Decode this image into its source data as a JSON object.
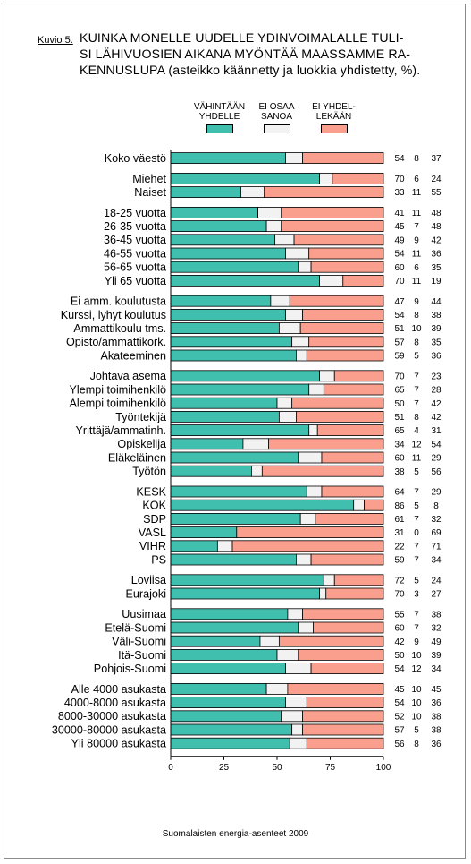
{
  "figure_label": "Kuvio 5.",
  "title": "KUINKA MONELLE UUDELLE YDINVOIMALALLE TULISI LÄHIVUOSIEN AIKANA MYÖNTÄÄ MAASSAMME RAKENNUSLUPA (asteikko käännetty ja luokkia yhdistetty, %).",
  "title_lines": [
    "KUINKA MONELLE UUDELLE YDINVOIMALALLE TULI-",
    "SI LÄHIVUOSIEN AIKANA MYÖNTÄÄ MAASSAMME RA-",
    "KENNUSLUPA (asteikko käännetty ja luokkia yhdistetty, %)."
  ],
  "legend": [
    {
      "line1": "VÄHINTÄÄN",
      "line2": "YHDELLE",
      "color": "#40bfae"
    },
    {
      "line1": "EI OSAA",
      "line2": "SANOA",
      "color": "#f2f2f2"
    },
    {
      "line1": "EI YHDEL-",
      "line2": "LEKÄÄN",
      "color": "#fa9f8e"
    }
  ],
  "source": "Suomalaisten energia-asenteet 2009",
  "chart_data": {
    "type": "bar",
    "orientation": "horizontal",
    "stacked": true,
    "title": "KUINKA MONELLE UUDELLE YDINVOIMALALLE TULISI LÄHIVUOSIEN AIKANA MYÖNTÄÄ MAASSAMME RAKENNUSLUPA (asteikko käännetty ja luokkia yhdistetty, %).",
    "xlim": [
      0,
      100
    ],
    "x_ticks": [
      "0",
      "25",
      "50",
      "75",
      "100"
    ],
    "grid": false,
    "legend_position": "top",
    "series_names": [
      "VÄHINTÄÄN YHDELLE",
      "EI OSAA SANOA",
      "EI YHDELLEKÄÄN"
    ],
    "groups": [
      {
        "rows": [
          {
            "label": "Koko väestö",
            "values": [
              54,
              8,
              37
            ]
          }
        ]
      },
      {
        "rows": [
          {
            "label": "Miehet",
            "values": [
              70,
              6,
              24
            ]
          },
          {
            "label": "Naiset",
            "values": [
              33,
              11,
              55
            ]
          }
        ]
      },
      {
        "rows": [
          {
            "label": "18-25 vuotta",
            "values": [
              41,
              11,
              48
            ]
          },
          {
            "label": "26-35 vuotta",
            "values": [
              45,
              7,
              48
            ]
          },
          {
            "label": "36-45 vuotta",
            "values": [
              49,
              9,
              42
            ]
          },
          {
            "label": "46-55 vuotta",
            "values": [
              54,
              11,
              36
            ]
          },
          {
            "label": "56-65 vuotta",
            "values": [
              60,
              6,
              35
            ]
          },
          {
            "label": "Yli 65 vuotta",
            "values": [
              70,
              11,
              19
            ]
          }
        ]
      },
      {
        "rows": [
          {
            "label": "Ei amm. koulutusta",
            "values": [
              47,
              9,
              44
            ]
          },
          {
            "label": "Kurssi, lyhyt koulutus",
            "values": [
              54,
              8,
              38
            ]
          },
          {
            "label": "Ammattikoulu tms.",
            "values": [
              51,
              10,
              39
            ]
          },
          {
            "label": "Opisto/ammattikork.",
            "values": [
              57,
              8,
              35
            ]
          },
          {
            "label": "Akateeminen",
            "values": [
              59,
              5,
              36
            ]
          }
        ]
      },
      {
        "rows": [
          {
            "label": "Johtava asema",
            "values": [
              70,
              7,
              23
            ]
          },
          {
            "label": "Ylempi toimihenkilö",
            "values": [
              65,
              7,
              28
            ]
          },
          {
            "label": "Alempi toimihenkilö",
            "values": [
              50,
              7,
              42
            ]
          },
          {
            "label": "Työntekijä",
            "values": [
              51,
              8,
              42
            ]
          },
          {
            "label": "Yrittäjä/ammatinh.",
            "values": [
              65,
              4,
              31
            ]
          },
          {
            "label": "Opiskelija",
            "values": [
              34,
              12,
              54
            ]
          },
          {
            "label": "Eläkeläinen",
            "values": [
              60,
              11,
              29
            ]
          },
          {
            "label": "Työtön",
            "values": [
              38,
              5,
              56
            ]
          }
        ]
      },
      {
        "rows": [
          {
            "label": "KESK",
            "values": [
              64,
              7,
              29
            ]
          },
          {
            "label": "KOK",
            "values": [
              86,
              5,
              8
            ]
          },
          {
            "label": "SDP",
            "values": [
              61,
              7,
              32
            ]
          },
          {
            "label": "VASL",
            "values": [
              31,
              0,
              69
            ]
          },
          {
            "label": "VIHR",
            "values": [
              22,
              7,
              71
            ]
          },
          {
            "label": "PS",
            "values": [
              59,
              7,
              34
            ]
          }
        ]
      },
      {
        "rows": [
          {
            "label": "Loviisa",
            "values": [
              72,
              5,
              24
            ]
          },
          {
            "label": "Eurajoki",
            "values": [
              70,
              3,
              27
            ]
          }
        ]
      },
      {
        "rows": [
          {
            "label": "Uusimaa",
            "values": [
              55,
              7,
              38
            ]
          },
          {
            "label": "Etelä-Suomi",
            "values": [
              60,
              7,
              32
            ]
          },
          {
            "label": "Väli-Suomi",
            "values": [
              42,
              9,
              49
            ]
          },
          {
            "label": "Itä-Suomi",
            "values": [
              50,
              10,
              39
            ]
          },
          {
            "label": "Pohjois-Suomi",
            "values": [
              54,
              12,
              34
            ]
          }
        ]
      },
      {
        "rows": [
          {
            "label": "Alle 4000 asukasta",
            "values": [
              45,
              10,
              45
            ]
          },
          {
            "label": "4000-8000 asukasta",
            "values": [
              54,
              10,
              36
            ]
          },
          {
            "label": "8000-30000 asukasta",
            "values": [
              52,
              10,
              38
            ]
          },
          {
            "label": "30000-80000 asukasta",
            "values": [
              57,
              5,
              38
            ]
          },
          {
            "label": "Yli 80000 asukasta",
            "values": [
              56,
              8,
              36
            ]
          }
        ]
      }
    ]
  }
}
